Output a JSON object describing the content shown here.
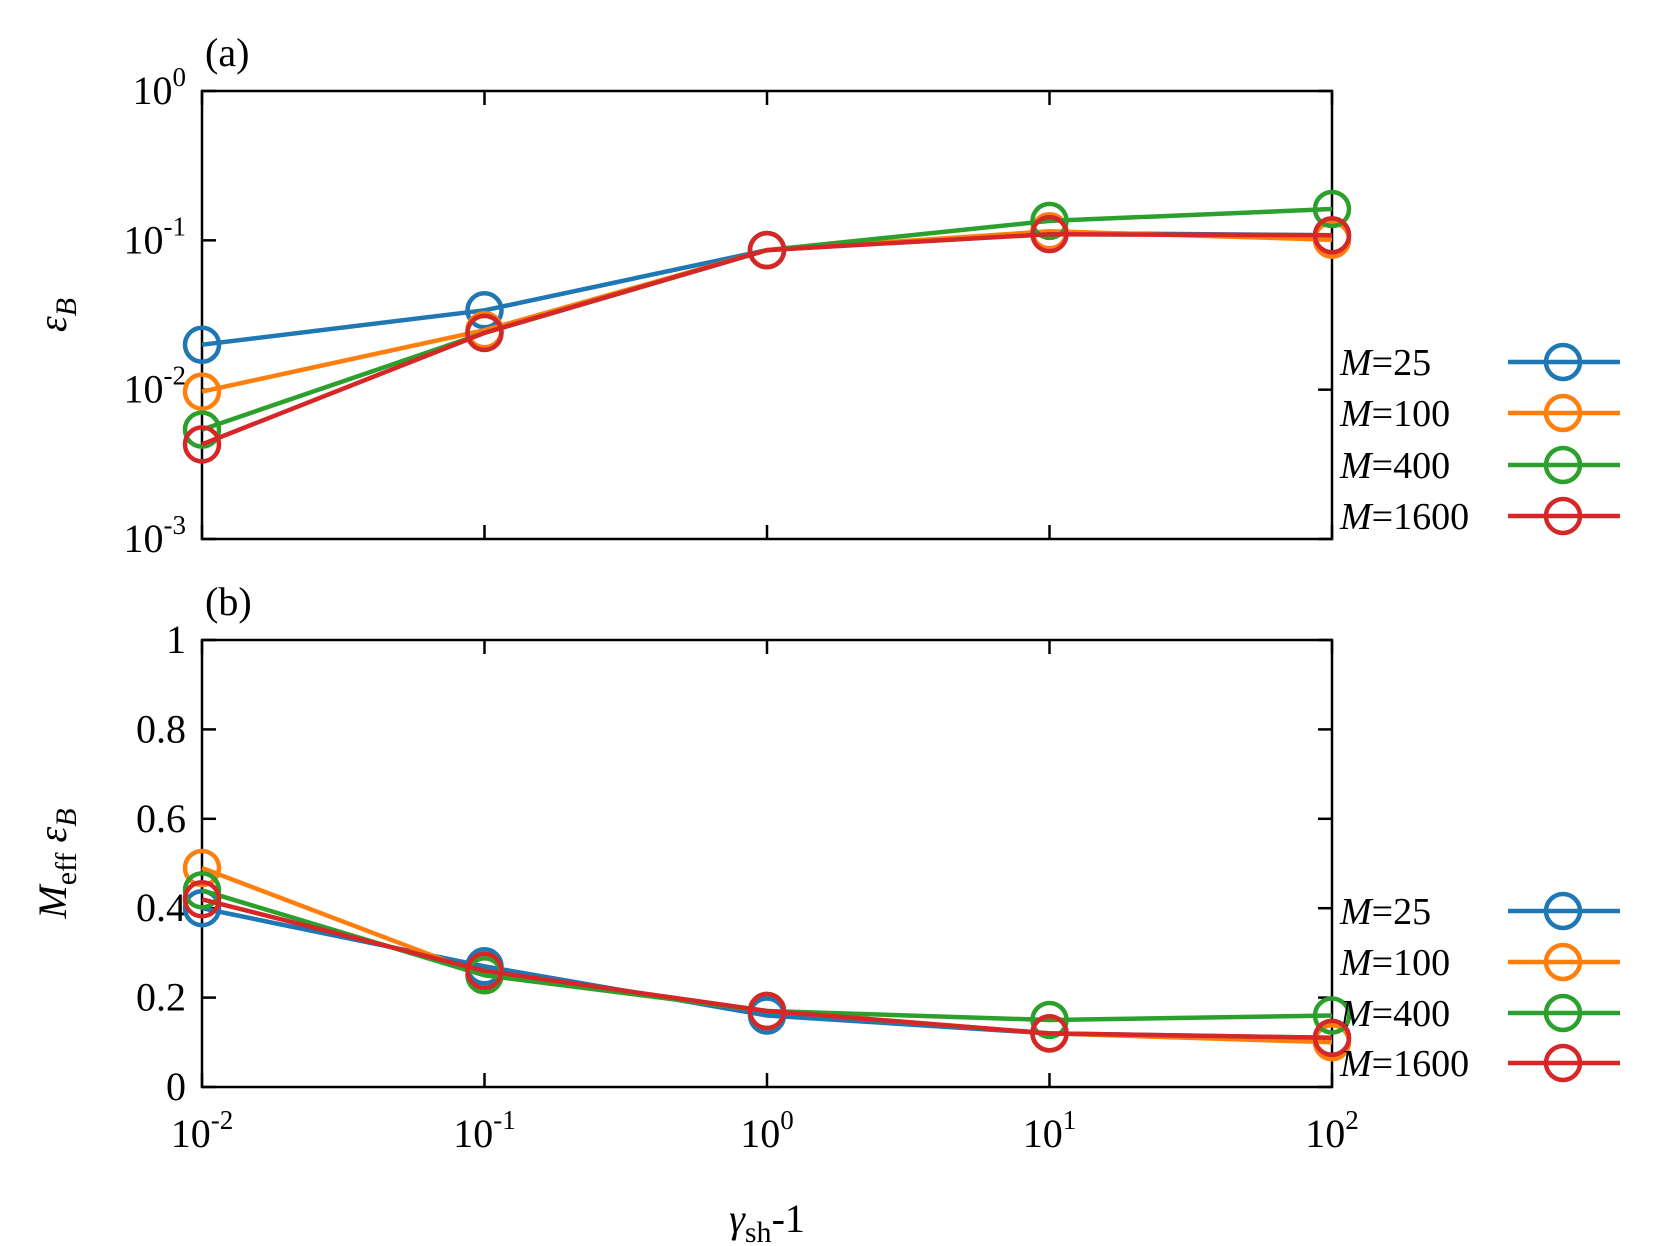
{
  "chart_data": [
    {
      "type": "line",
      "panel_label": "(a)",
      "xscale": "log",
      "yscale": "log",
      "xlim": [
        0.01,
        100
      ],
      "ylim": [
        0.001,
        1
      ],
      "xlabel": "",
      "ylabel": "εB",
      "ylabel_parts": {
        "main": "ε",
        "sub": "B"
      },
      "yticks": [
        {
          "base": "10",
          "exp": "-3",
          "value": 0.001
        },
        {
          "base": "10",
          "exp": "-2",
          "value": 0.01
        },
        {
          "base": "10",
          "exp": "-1",
          "value": 0.1
        },
        {
          "base": "10",
          "exp": "0",
          "value": 1
        }
      ],
      "legend_position": "right",
      "marker": "open-circle",
      "x": [
        0.01,
        0.1,
        1,
        10,
        100
      ],
      "series": [
        {
          "name": "M=25",
          "name_italic": "M",
          "name_rest": "=25",
          "color": "#1f77b4",
          "values": [
            0.02,
            0.034,
            0.086,
            0.112,
            0.108
          ]
        },
        {
          "name": "M=100",
          "name_italic": "M",
          "name_rest": "=100",
          "color": "#ff7f0e",
          "values": [
            0.0097,
            0.025,
            0.086,
            0.115,
            0.101
          ]
        },
        {
          "name": "M=400",
          "name_italic": "M",
          "name_rest": "=400",
          "color": "#2ca02c",
          "values": [
            0.0054,
            0.024,
            0.086,
            0.135,
            0.162
          ]
        },
        {
          "name": "M=1600",
          "name_italic": "M",
          "name_rest": "=1600",
          "color": "#d62728",
          "values": [
            0.0043,
            0.024,
            0.086,
            0.11,
            0.108
          ]
        }
      ]
    },
    {
      "type": "line",
      "panel_label": "(b)",
      "xscale": "log",
      "yscale": "linear",
      "xlim": [
        0.01,
        100
      ],
      "ylim": [
        0,
        1
      ],
      "xlabel": "γsh-1",
      "xlabel_parts": {
        "main": "γ",
        "sub": "sh",
        "rest": "-1"
      },
      "ylabel": "Meff εB",
      "ylabel_parts": {
        "m": "M",
        "msub": "eff",
        "e": "ε",
        "esub": "B"
      },
      "xticks": [
        {
          "base": "10",
          "exp": "-2",
          "value": 0.01
        },
        {
          "base": "10",
          "exp": "-1",
          "value": 0.1
        },
        {
          "base": "10",
          "exp": "0",
          "value": 1
        },
        {
          "base": "10",
          "exp": "1",
          "value": 10
        },
        {
          "base": "10",
          "exp": "2",
          "value": 100
        }
      ],
      "yticks": [
        {
          "label": "0",
          "value": 0
        },
        {
          "label": "0.2",
          "value": 0.2
        },
        {
          "label": "0.4",
          "value": 0.4
        },
        {
          "label": "0.6",
          "value": 0.6
        },
        {
          "label": "0.8",
          "value": 0.8
        },
        {
          "label": "1",
          "value": 1
        }
      ],
      "legend_position": "right",
      "marker": "open-circle",
      "x": [
        0.01,
        0.1,
        1,
        10,
        100
      ],
      "series": [
        {
          "name": "M=25",
          "name_italic": "M",
          "name_rest": "=25",
          "color": "#1f77b4",
          "values": [
            0.4,
            0.27,
            0.16,
            0.12,
            0.11
          ]
        },
        {
          "name": "M=100",
          "name_italic": "M",
          "name_rest": "=100",
          "color": "#ff7f0e",
          "values": [
            0.49,
            0.25,
            0.17,
            0.12,
            0.1
          ]
        },
        {
          "name": "M=400",
          "name_italic": "M",
          "name_rest": "=400",
          "color": "#2ca02c",
          "values": [
            0.44,
            0.25,
            0.17,
            0.15,
            0.16
          ]
        },
        {
          "name": "M=1600",
          "name_italic": "M",
          "name_rest": "=1600",
          "color": "#d62728",
          "values": [
            0.42,
            0.26,
            0.17,
            0.12,
            0.11
          ]
        }
      ]
    }
  ]
}
